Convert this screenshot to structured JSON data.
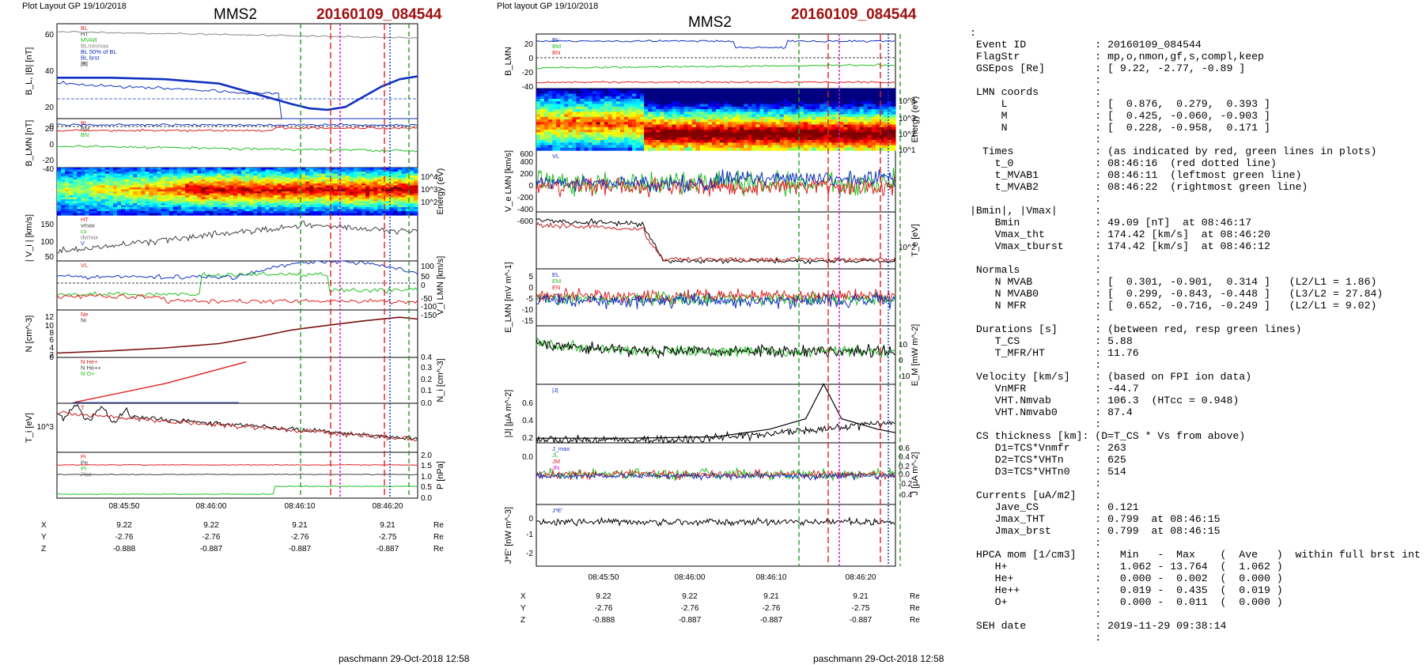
{
  "left": {
    "header": "Plot Layout GP 19/10/2018",
    "spacecraft": "MMS2",
    "event": "20160109_084544",
    "footer": "paschmann 29-Oct-2018 12:58",
    "time_ticks": [
      "08:45:50",
      "08:46:00",
      "08:46:10",
      "08:46:20"
    ],
    "position_rows": [
      {
        "label": "X",
        "values": [
          "9.22",
          "9.22",
          "9.21",
          "9.21"
        ],
        "unit": "Re"
      },
      {
        "label": "Y",
        "values": [
          "-2.76",
          "-2.76",
          "-2.76",
          "-2.75"
        ],
        "unit": "Re"
      },
      {
        "label": "Z",
        "values": [
          "-0.888",
          "-0.887",
          "-0.887",
          "-0.887"
        ],
        "unit": "Re"
      }
    ],
    "panels": [
      {
        "ylabel": "B_L, |B| [nT]",
        "side": "left",
        "ticks": [
          "60",
          "40",
          "20",
          "0"
        ],
        "legend": [
          "BL",
          "HT",
          "MVAB",
          "BLminmax",
          "BL 50% of BL",
          "BL brst",
          "|B|"
        ]
      },
      {
        "ylabel": "B_LMN [nT]",
        "side": "left",
        "ticks": [
          "20",
          "0",
          "-20",
          "-40"
        ],
        "legend": [
          "BL",
          "BM",
          "BN"
        ]
      },
      {
        "ylabel": "Energy (eV)",
        "side": "right",
        "ticks": [
          "10^4",
          "10^3",
          "10^2"
        ],
        "legend": []
      },
      {
        "ylabel": "| V_i | [km/s]",
        "side": "left",
        "ticks": [
          "150",
          "100",
          "50"
        ],
        "legend": [
          "HT",
          "vmax",
          "cs",
          "dvmax",
          "V"
        ]
      },
      {
        "ylabel": "V_i LMN [km/s]",
        "side": "right",
        "ticks": [
          "100",
          "50",
          "0",
          "-50",
          "-100",
          "-150"
        ],
        "legend": [
          "VL"
        ]
      },
      {
        "ylabel": "N [cm^-3]",
        "side": "left",
        "ticks": [
          "12",
          "10",
          "8",
          "6",
          "4",
          "2",
          "0"
        ],
        "legend": [
          "Ne",
          "Ni"
        ]
      },
      {
        "ylabel": "N_i [cm^-3]",
        "side": "right",
        "ticks": [
          "0.4",
          "0.3",
          "0.2",
          "0.1",
          "0.0"
        ],
        "legend": [
          "N He+",
          "N He++",
          "N O+"
        ]
      },
      {
        "ylabel": "T_i [eV]",
        "side": "left",
        "ticks": [
          "10^3"
        ],
        "legend": [
          "T"
        ]
      },
      {
        "ylabel": "P [nPa]",
        "side": "right",
        "ticks": [
          "2.0",
          "1.5",
          "1.0",
          "0.5",
          "0.0"
        ],
        "legend": [
          "Pi",
          "Pe",
          "Pt",
          "Ptot"
        ]
      }
    ]
  },
  "middle": {
    "header": "Plot layout GP 19/10/2018",
    "spacecraft": "MMS2",
    "event": "20160109_084544",
    "footer": "paschmann 29-Oct-2018 12:58",
    "time_ticks": [
      "08:45:50",
      "08:46:00",
      "08:46:10",
      "08:46:20"
    ],
    "position_rows": [
      {
        "label": "X",
        "values": [
          "9.22",
          "9.22",
          "9.21",
          "9.21"
        ],
        "unit": "Re"
      },
      {
        "label": "Y",
        "values": [
          "-2.76",
          "-2.76",
          "-2.76",
          "-2.75"
        ],
        "unit": "Re"
      },
      {
        "label": "Z",
        "values": [
          "-0.888",
          "-0.887",
          "-0.887",
          "-0.887"
        ],
        "unit": "Re"
      }
    ],
    "panels": [
      {
        "ylabel": "B_LMN",
        "side": "left",
        "ticks": [
          "20",
          "0",
          "-20",
          "-40"
        ],
        "legend": [
          "BL",
          "BM",
          "BN"
        ]
      },
      {
        "ylabel": "Energy (eV)",
        "side": "right",
        "ticks": [
          "10^4",
          "10^3",
          "10^2",
          "10^1"
        ],
        "legend": []
      },
      {
        "ylabel": "V_e LMN [km/s]",
        "side": "left",
        "ticks": [
          "600",
          "400",
          "200",
          "0",
          "-200",
          "-400",
          "-600"
        ],
        "legend": [
          "VL"
        ]
      },
      {
        "ylabel": "T_e [eV]",
        "side": "right",
        "ticks": [
          "10^2"
        ],
        "legend": []
      },
      {
        "ylabel": "E_LMN [mV m^-1]",
        "side": "left",
        "ticks": [
          "5",
          "0",
          "-5",
          "-10",
          "-15"
        ],
        "legend": [
          "EL",
          "EM",
          "EN"
        ]
      },
      {
        "ylabel": "E_M [mW m^-2]",
        "side": "right",
        "ticks": [
          "10",
          "0",
          "-10"
        ],
        "legend": []
      },
      {
        "ylabel": "|J| [μA m^-2]",
        "side": "left",
        "ticks": [
          "0.6",
          "0.4",
          "0.2",
          "0.0"
        ],
        "legend": [
          "|J|"
        ]
      },
      {
        "ylabel": "J [μA m^-2]",
        "side": "right",
        "ticks": [
          "0.6",
          "0.4",
          "0.2",
          "0.0",
          "-0.2",
          "-0.4"
        ],
        "legend": [
          "J_max",
          "JL",
          "JM",
          "JN"
        ]
      },
      {
        "ylabel": "J*E' [nW m^-3]",
        "side": "left",
        "ticks": [
          "0",
          "-1",
          "-2"
        ],
        "legend": [
          "J*E'"
        ]
      }
    ]
  },
  "info_lines": [
    ":",
    " Event ID           : 20160109_084544",
    " FlagStr            : mp,o,nmon,gf,s,compl,keep",
    " GSEpos [Re]        : [ 9.22, -2.77, -0.89 ]",
    "                    :",
    " LMN coords         :",
    "     L              : [  0.876,  0.279,  0.393 ]",
    "     M              : [  0.425, -0.060, -0.903 ]",
    "     N              : [  0.228, -0.958,  0.171 ]",
    "                    :",
    "  Times             : (as indicated by red, green lines in plots)",
    "    t_0             : 08:46:16  (red dotted line)",
    "    t_MVAB1         : 08:46:11  (leftmost green line)",
    "    t_MVAB2         : 08:46:22  (rightmost green line)",
    "                    :",
    "|Bmin|, |Vmax|      :",
    "    Bmin            : 49.09 [nT]  at 08:46:17",
    "    Vmax_tht        : 174.42 [km/s]  at 08:46:20",
    "    Vmax_tburst     : 174.42 [km/s]  at 08:46:12",
    "                    :",
    " Normals            :",
    "    N MVAB          : [  0.301, -0.901,  0.314 ]   (L2/L1 = 1.86)",
    "    N MVAB0         : [  0.299, -0.843, -0.448 ]   (L3/L2 = 27.84)",
    "    N MFR           : [  0.652, -0.716, -0.249 ]   (L2/L1 = 9.02)",
    "                    :",
    " Durations [s]      : (between red, resp green lines)",
    "    T_CS            : 5.88",
    "    T_MFR/HT        : 11.76",
    "                    :",
    " Velocity [km/s]    : (based on FPI ion data)",
    "    VnMFR           : -44.7",
    "    VHT.Nmvab       : 106.3  (HTcc = 0.948)",
    "    VHT.Nmvab0      : 87.4",
    "                    :",
    " CS thickness [km]: (D=T_CS * Vs from above)",
    "    D1=TCS*Vnmfr    : 263",
    "    D2=TCS*VHTn     : 625",
    "    D3=TCS*VHTn0    : 514",
    "                    :",
    " Currents [uA/m2]   :",
    "    Jave_CS         : 0.121",
    "    Jmax_THT        : 0.799  at 08:46:15",
    "    Jmax_brst       : 0.799  at 08:46:15",
    "                    :",
    " HPCA mom [1/cm3]   :   Min   -  Max    (  Ave   )  within full brst int",
    "    H+              :   1.062 - 13.764  (  1.062 )",
    "    He+             :   0.000 -  0.002  (  0.000 )",
    "    He++            :   0.019 -  0.435  (  0.019 )",
    "    O+              :   0.000 -  0.011  (  0.000 )",
    "                    :",
    " SEH date           : 2019-11-29 09:38:14",
    "                    :"
  ],
  "chart_data": [
    {
      "type": "line",
      "title": "MMS2 20160109_084544",
      "xlabel": "",
      "x_range": [
        "08:45:44",
        "08:46:24"
      ],
      "markers": {
        "red_dotted": "08:46:16",
        "green_left": "08:46:11",
        "green_right": "08:46:22"
      },
      "series": [
        {
          "name": "BL",
          "panel": 0,
          "color": "#1030c0",
          "x": [
            0,
            6,
            12,
            18,
            22,
            26,
            28,
            30,
            32,
            34,
            36,
            38,
            40
          ],
          "values": [
            28,
            28,
            27,
            24,
            17,
            10,
            7,
            6,
            8,
            15,
            22,
            27,
            29
          ]
        },
        {
          "name": "|B|",
          "panel": 0,
          "color": "#707070",
          "x": [
            0,
            6,
            12,
            18,
            22,
            26,
            30,
            34,
            38,
            40
          ],
          "values": [
            62,
            61,
            60,
            59,
            58,
            57,
            56,
            54,
            56,
            57
          ]
        },
        {
          "name": "Ni",
          "panel": 5,
          "color": "#000000",
          "x": [
            0,
            6,
            12,
            18,
            22,
            26,
            30,
            34,
            38,
            40
          ],
          "values": [
            1.2,
            1.8,
            2.6,
            3.8,
            5.5,
            7.5,
            8.8,
            10,
            11,
            10.5
          ]
        },
        {
          "name": "N He++",
          "panel": 6,
          "color": "#e02020",
          "x": [
            2,
            12,
            21
          ],
          "values": [
            0.01,
            0.19,
            0.4
          ]
        },
        {
          "name": "|J|",
          "panel": "m6",
          "color": "#000000",
          "x": [
            0,
            10,
            20,
            26,
            30,
            32,
            34,
            38,
            40
          ],
          "values": [
            0.02,
            0.02,
            0.04,
            0.15,
            0.3,
            0.8,
            0.3,
            0.15,
            0.1
          ]
        }
      ]
    }
  ]
}
